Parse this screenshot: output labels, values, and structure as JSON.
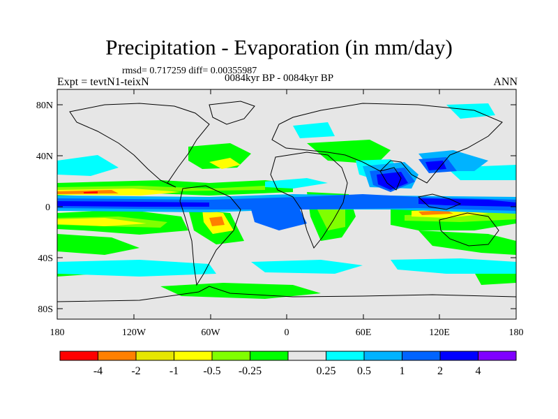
{
  "header": {
    "title": "Precipitation - Evaporation (in mm/day)",
    "stats": "rmsd= 0.717259 diff= 0.00355987",
    "experiment": "Expt = tevtN1-teixN",
    "time_range": "0084kyr BP - 0084kyr BP",
    "season": "ANN"
  },
  "axes": {
    "lat_ticks": [
      "80N",
      "40N",
      "0",
      "40S",
      "80S"
    ],
    "lon_ticks": [
      "180",
      "120W",
      "60W",
      "0",
      "60E",
      "120E",
      "180"
    ]
  },
  "colorbar": {
    "colors": [
      "#ff0000",
      "#ff8000",
      "#e6e600",
      "#ffff00",
      "#80ff00",
      "#00ff00",
      "#e6e6e6",
      "#00ffff",
      "#00b3ff",
      "#0064ff",
      "#0000ff",
      "#8000ff"
    ],
    "labels": [
      "-4",
      "-2",
      "-1",
      "-0.5",
      "-0.25",
      "0.25",
      "0.5",
      "1",
      "2",
      "4"
    ]
  }
}
